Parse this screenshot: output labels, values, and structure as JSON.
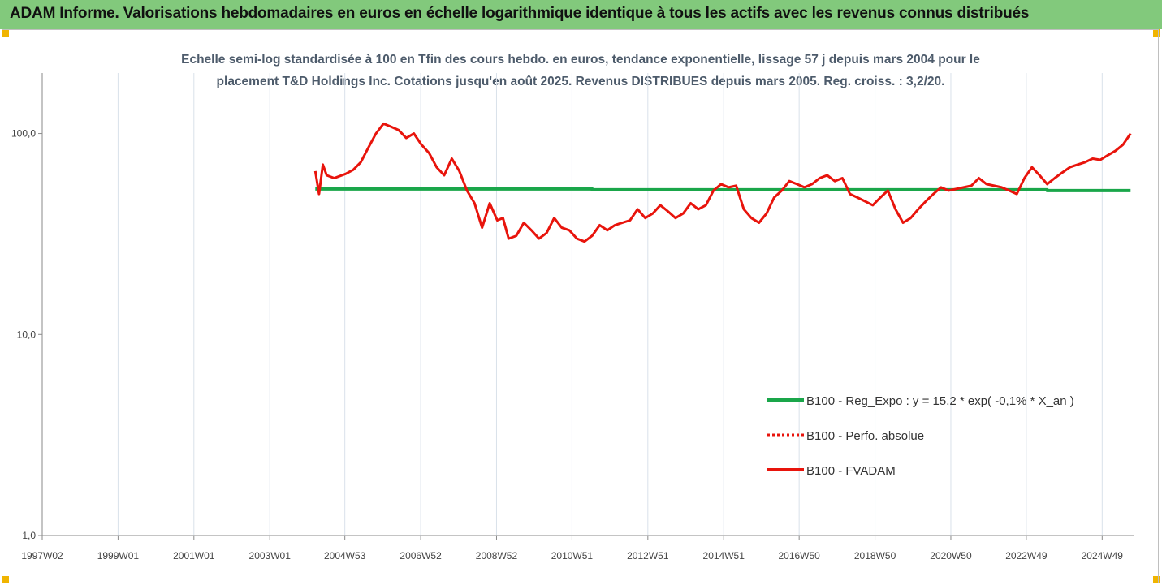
{
  "header": {
    "title": "ADAM Informe. Valorisations hebdomadaires en euros en échelle logarithmique identique à tous les actifs avec les revenus connus distribués"
  },
  "chart_data": {
    "type": "line",
    "title_line1": "Echelle semi-log standardisée à 100 en Tfin des cours hebdo. en euros, tendance exponentielle, lissage 57 j depuis mars 2004 pour le",
    "title_line2": "placement T&D Holdings Inc. Cotations jusqu'en août 2025. Revenus DISTRIBUES depuis mars 2005. Reg. croiss. : 3,2/20.",
    "y_scale": "log",
    "ylim": [
      1,
      200
    ],
    "y_ticks": [
      "100,0",
      "10,0",
      "1,0"
    ],
    "y_tick_values": [
      100,
      10,
      1
    ],
    "xlim": [
      1997.0,
      2025.8
    ],
    "x_ticks": [
      "1997W02",
      "1999W01",
      "2001W01",
      "2003W01",
      "2004W53",
      "2006W52",
      "2008W52",
      "2010W51",
      "2012W51",
      "2014W51",
      "2016W50",
      "2018W50",
      "2020W50",
      "2022W49",
      "2024W49"
    ],
    "x_tick_values": [
      1997.0,
      1999.0,
      2001.0,
      2003.0,
      2004.98,
      2006.98,
      2008.98,
      2010.97,
      2012.97,
      2014.97,
      2016.96,
      2018.96,
      2020.96,
      2022.95,
      2024.95
    ],
    "grid": "vertical",
    "legend_position": "right",
    "series": [
      {
        "name": "B100 - Reg_Expo : y = 15,2 * exp( -0,1% *  X_an )",
        "color": "#1aa64a",
        "style": "solid",
        "x": [
          2004.2,
          2011.5,
          2011.5,
          2023.5,
          2023.5,
          2025.7
        ],
        "y": [
          53,
          53,
          52.5,
          52.5,
          52,
          52
        ]
      },
      {
        "name": "B100 - Perfo. absolue",
        "color": "#e8140c",
        "style": "dotted",
        "x": [],
        "y": []
      },
      {
        "name": "B100 - FVADAM",
        "color": "#e8140c",
        "style": "solid",
        "x": [
          2004.2,
          2004.3,
          2004.4,
          2004.5,
          2004.7,
          2005.0,
          2005.2,
          2005.4,
          2005.6,
          2005.8,
          2006.0,
          2006.2,
          2006.4,
          2006.6,
          2006.8,
          2007.0,
          2007.2,
          2007.4,
          2007.6,
          2007.8,
          2008.0,
          2008.2,
          2008.4,
          2008.6,
          2008.8,
          2009.0,
          2009.15,
          2009.3,
          2009.5,
          2009.7,
          2009.9,
          2010.1,
          2010.3,
          2010.5,
          2010.7,
          2010.9,
          2011.1,
          2011.3,
          2011.5,
          2011.7,
          2011.9,
          2012.1,
          2012.3,
          2012.5,
          2012.7,
          2012.9,
          2013.1,
          2013.3,
          2013.5,
          2013.7,
          2013.9,
          2014.1,
          2014.3,
          2014.5,
          2014.7,
          2014.9,
          2015.1,
          2015.3,
          2015.5,
          2015.7,
          2015.9,
          2016.1,
          2016.3,
          2016.5,
          2016.7,
          2016.9,
          2017.1,
          2017.3,
          2017.5,
          2017.7,
          2017.9,
          2018.1,
          2018.3,
          2018.5,
          2018.7,
          2018.9,
          2019.1,
          2019.3,
          2019.5,
          2019.7,
          2019.9,
          2020.1,
          2020.3,
          2020.5,
          2020.7,
          2020.9,
          2021.1,
          2021.3,
          2021.5,
          2021.7,
          2021.9,
          2022.1,
          2022.3,
          2022.5,
          2022.7,
          2022.9,
          2023.1,
          2023.3,
          2023.5,
          2023.7,
          2023.9,
          2024.1,
          2024.3,
          2024.5,
          2024.7,
          2024.9,
          2025.1,
          2025.3,
          2025.5,
          2025.7
        ],
        "y": [
          65,
          50,
          70,
          62,
          60,
          63,
          66,
          72,
          85,
          100,
          112,
          108,
          104,
          95,
          100,
          88,
          80,
          68,
          62,
          75,
          65,
          52,
          45,
          34,
          45,
          37,
          38,
          30,
          31,
          36,
          33,
          30,
          32,
          38,
          34,
          33,
          30,
          29,
          31,
          35,
          33,
          35,
          36,
          37,
          42,
          38,
          40,
          44,
          41,
          38,
          40,
          45,
          42,
          44,
          52,
          56,
          54,
          55,
          42,
          38,
          36,
          40,
          48,
          52,
          58,
          56,
          54,
          56,
          60,
          62,
          58,
          60,
          50,
          48,
          46,
          44,
          48,
          52,
          42,
          36,
          38,
          42,
          46,
          50,
          54,
          52,
          53,
          54,
          55,
          60,
          56,
          55,
          54,
          52,
          50,
          60,
          68,
          62,
          56,
          60,
          64,
          68,
          70,
          72,
          75,
          74,
          78,
          82,
          88,
          100
        ]
      }
    ]
  }
}
